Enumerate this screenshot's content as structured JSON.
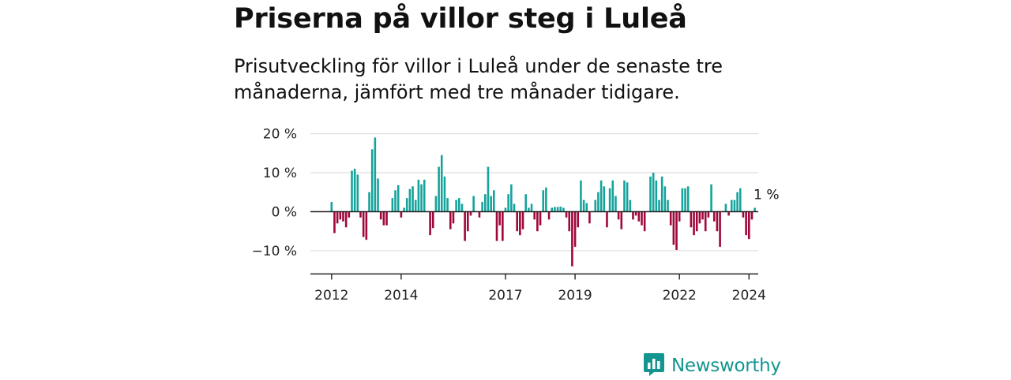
{
  "title": "Priserna på villor steg i Luleå",
  "subtitle": "Prisutveckling för villor i Luleå under de senaste tre månaderna, jämfört med tre månader tidigare.",
  "brand": {
    "name": "Newsworthy",
    "color": "#14958f",
    "icon": "bar-chart-speech-bubble-icon"
  },
  "colors": {
    "positive": "#16a39c",
    "negative": "#a0073a",
    "grid": "#dddddd",
    "axis": "#222222"
  },
  "chart_data": {
    "type": "bar",
    "title": "Priserna på villor steg i Luleå",
    "xlabel": "",
    "ylabel": "",
    "ylim": [
      -16,
      20
    ],
    "y_ticks": [
      20,
      10,
      0,
      -10
    ],
    "y_tick_labels": [
      "20 %",
      "10 %",
      "0 %",
      "−10 %"
    ],
    "x_ticks": [
      {
        "label": "2012",
        "index": 0
      },
      {
        "label": "2014",
        "index": 24
      },
      {
        "label": "2017",
        "index": 60
      },
      {
        "label": "2019",
        "index": 84
      },
      {
        "label": "2022",
        "index": 120
      },
      {
        "label": "2024",
        "index": 144
      }
    ],
    "start": "2012-01",
    "unit": "%",
    "last_value_label": "1 %",
    "values": [
      2.5,
      -5.5,
      -3,
      -2,
      -2.5,
      -4,
      -1.5,
      10.5,
      11,
      9.5,
      -1.5,
      -6.5,
      -7.2,
      5,
      16,
      19,
      8.5,
      -2,
      -3.5,
      -3.5,
      0,
      3.5,
      5.5,
      6.8,
      -1.5,
      1,
      3.5,
      5.8,
      6.5,
      3,
      8.2,
      7,
      8.2,
      0,
      -6,
      -4.2,
      4,
      11.5,
      14.5,
      9,
      3.5,
      -4.5,
      -3,
      3,
      3.5,
      2,
      -7.5,
      -5,
      -1,
      4,
      0,
      -1.5,
      2.5,
      4.5,
      11.5,
      4,
      5.5,
      -7.5,
      -3.5,
      -7.5,
      1,
      4.5,
      7,
      2,
      -5,
      -6,
      -4.5,
      4.5,
      1,
      2,
      -2,
      -5,
      -3.5,
      5.5,
      6.2,
      -2,
      1,
      1.2,
      1.2,
      1.3,
      1,
      -1.5,
      -5,
      -14,
      -9,
      -4,
      8,
      3,
      2.2,
      -3,
      0,
      3,
      5,
      8,
      6.5,
      -4,
      6,
      8,
      4,
      -2,
      -4.5,
      8,
      7.5,
      3,
      -2,
      -1,
      -2.5,
      -3.5,
      -5,
      0,
      9,
      10,
      8,
      3,
      9,
      6.5,
      3,
      -3.5,
      -8.5,
      -9.8,
      -2.5,
      6,
      6,
      6.5,
      -4,
      -6,
      -5,
      -3,
      -2,
      -5,
      -1.5,
      7,
      -2.5,
      -5,
      -9,
      0,
      2,
      -1,
      3,
      3,
      5,
      6,
      -1.5,
      -6,
      -7,
      -2,
      1
    ]
  }
}
